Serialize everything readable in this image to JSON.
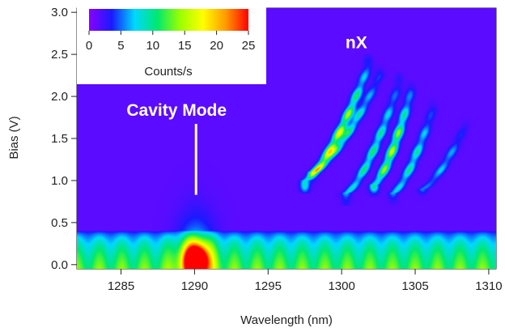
{
  "chart_data": {
    "type": "heatmap",
    "xlabel": "Wavelength (nm)",
    "ylabel": "Bias (V)",
    "xlim": [
      1282,
      1310.5
    ],
    "ylim": [
      -0.05,
      3.05
    ],
    "x_ticks": [
      1285,
      1290,
      1295,
      1300,
      1305,
      1310
    ],
    "x_tick_labels": [
      "1285",
      "1290",
      "1295",
      "1300",
      "1305",
      "1310"
    ],
    "y_ticks": [
      0.0,
      0.5,
      1.0,
      1.5,
      2.0,
      2.5,
      3.0
    ],
    "y_tick_labels": [
      "0.0",
      "0.5",
      "1.0",
      "1.5",
      "2.0",
      "2.5",
      "3.0"
    ],
    "colorbar": {
      "label": "Counts/s",
      "range": [
        0,
        25
      ],
      "ticks": [
        0,
        5,
        10,
        15,
        20,
        25
      ],
      "tick_labels": [
        "0",
        "5",
        "10",
        "15",
        "20",
        "25"
      ],
      "colors": [
        "#8a00ff",
        "#1a1aff",
        "#00d8ff",
        "#00e870",
        "#9cff00",
        "#ffff00",
        "#ff9a00",
        "#ff0000"
      ]
    },
    "annotations": [
      {
        "text": "Cavity Mode",
        "x": 1290.1,
        "bias_from": 0.83,
        "bias_to": 1.75
      },
      {
        "text": "nX",
        "x": 1301.0,
        "bias": 2.65
      }
    ],
    "features": {
      "background_counts": 1.5,
      "emission_band": {
        "bias_max": 0.4,
        "counts": 12
      },
      "cavity_mode": {
        "wavelength": 1290.1,
        "bias": 0.05,
        "peak_counts": 25
      },
      "exciton_lines": [
        {
          "wavelength_start": 1297.5,
          "bias_start": 1.0,
          "wavelength_end": 1301.8,
          "bias_end": 2.35,
          "peak_counts": 17
        },
        {
          "wavelength_start": 1298.0,
          "bias_start": 1.1,
          "wavelength_end": 1302.6,
          "bias_end": 2.25,
          "peak_counts": 10
        },
        {
          "wavelength_start": 1300.3,
          "bias_start": 0.85,
          "wavelength_end": 1303.9,
          "bias_end": 2.15,
          "peak_counts": 10
        },
        {
          "wavelength_start": 1302.2,
          "bias_start": 0.95,
          "wavelength_end": 1304.7,
          "bias_end": 2.05,
          "peak_counts": 15
        },
        {
          "wavelength_start": 1303.5,
          "bias_start": 0.85,
          "wavelength_end": 1306.2,
          "bias_end": 1.85,
          "peak_counts": 9
        },
        {
          "wavelength_start": 1305.5,
          "bias_start": 0.9,
          "wavelength_end": 1308.4,
          "bias_end": 1.65,
          "peak_counts": 6
        }
      ]
    }
  }
}
